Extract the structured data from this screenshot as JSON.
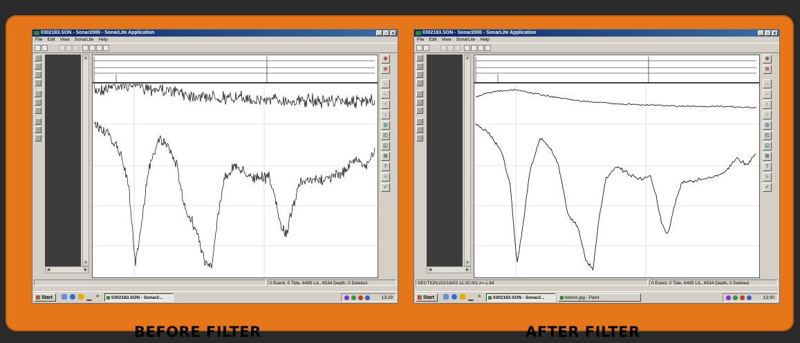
{
  "panels": {
    "before": {
      "window_title": "0302183.SON - Sonar2000 - SonarLite Application",
      "menu": [
        "File",
        "Edit",
        "View",
        "SonarLite",
        "Help"
      ],
      "status_section": "",
      "status_info": "0 Event, 0 Tide, 6495 L/L, 6534 Depth, 0 Deleted",
      "taskbar": {
        "start": "Start",
        "chevron": "»",
        "tasks": [
          "0302183.SON - Sonar2..."
        ],
        "clock": "13:29"
      },
      "caption": "BEFORE FILTER"
    },
    "after": {
      "window_title": "0302183.SON - Sonar2000 - SonarLite Application",
      "menu": [
        "File",
        "Edit",
        "View",
        "SonarLite",
        "Help"
      ],
      "status_section": "SECTION:(02/18/03 11:32:00) z=-1.94",
      "status_info": "0 Event, 0 Tide, 6495 L/L, 6534 Depth, 0 Deleted",
      "taskbar": {
        "start": "Start",
        "chevron": "»",
        "tasks": [
          "0302183.SON - Sonar2...",
          "before.jpg - Paint"
        ],
        "clock": "13:30"
      },
      "caption": "AFTER FILTER"
    }
  },
  "window_buttons": [
    "_",
    "̅",
    "×"
  ],
  "icons": {
    "right_toolbar": [
      "zoom-in-icon",
      "zoom-out-icon",
      "arrow-right-icon",
      "arrow-left-icon",
      "arrow-up-icon",
      "arrow-down-icon",
      "zoom-window-icon",
      "fit-icon",
      "zoom-box-icon",
      "pan-icon",
      "help-icon",
      "filter-icon",
      "check-icon"
    ]
  },
  "colors": {
    "frame": "#e6761a",
    "background": "#2b2a2b",
    "titlebar": "#0a246a"
  }
}
